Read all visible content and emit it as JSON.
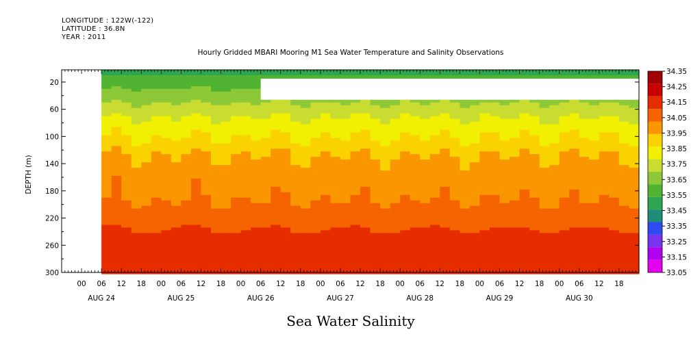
{
  "header": {
    "longitude": "LONGITUDE : 122W(-122)",
    "latitude": "LATITUDE : 36.8N",
    "year": "YEAR : 2011"
  },
  "chart_data": {
    "type": "heatmap",
    "title": "Hourly Gridded MBARI Mooring M1 Sea Water Temperature and Salinity Observations",
    "subtitle": "Sea Water Salinity",
    "ylabel": "DEPTH (m)",
    "xlabel": "",
    "y_axis": {
      "range": [
        300,
        2
      ],
      "ticks": [
        20,
        60,
        100,
        140,
        180,
        220,
        260,
        300
      ],
      "inverted": true
    },
    "x_axis": {
      "start": "2011-08-23 18:00",
      "end": "2011-08-31 00:00",
      "hour_tick_labels": [
        "00",
        "06",
        "12",
        "18",
        "00",
        "06",
        "12",
        "18",
        "00",
        "06",
        "12",
        "18",
        "00",
        "06",
        "12",
        "18",
        "00",
        "06",
        "12",
        "18",
        "00",
        "06",
        "12",
        "18",
        "00",
        "06",
        "12",
        "18"
      ],
      "day_labels": [
        "AUG 24",
        "AUG 25",
        "AUG 26",
        "AUG 27",
        "AUG 28",
        "AUG 29",
        "AUG 30"
      ]
    },
    "data_start": "2011-08-24 06:00",
    "missing_data": {
      "time_from": "2011-08-26 06:00",
      "time_to": "2011-08-31 00:00",
      "depth_from": 15,
      "depth_to": 46
    },
    "colorbar": {
      "levels": [
        33.05,
        33.15,
        33.25,
        33.35,
        33.45,
        33.55,
        33.65,
        33.75,
        33.85,
        33.95,
        34.05,
        34.15,
        34.25,
        34.35
      ],
      "colors": [
        "#e600f0",
        "#b000f0",
        "#7832f0",
        "#2d4bf0",
        "#1e8c78",
        "#2ea550",
        "#50b432",
        "#8cc837",
        "#c8dc32",
        "#f0f000",
        "#fad200",
        "#fa9600",
        "#f56400",
        "#e62d00",
        "#c80000",
        "#a00000"
      ]
    },
    "depth_profile": [
      {
        "depth": 2,
        "value": 33.5
      },
      {
        "depth": 10,
        "value": 33.55
      },
      {
        "depth": 25,
        "value": 33.63
      },
      {
        "depth": 45,
        "value": 33.72
      },
      {
        "depth": 65,
        "value": 33.82
      },
      {
        "depth": 85,
        "value": 33.9
      },
      {
        "depth": 105,
        "value": 33.96
      },
      {
        "depth": 125,
        "value": 34.04
      },
      {
        "depth": 150,
        "value": 34.1
      },
      {
        "depth": 185,
        "value": 34.13
      },
      {
        "depth": 210,
        "value": 34.18
      },
      {
        "depth": 232,
        "value": 34.23
      },
      {
        "depth": 250,
        "value": 34.3
      },
      {
        "depth": 265,
        "value": 34.32
      },
      {
        "depth": 285,
        "value": 34.26
      },
      {
        "depth": 300,
        "value": 34.25
      }
    ]
  }
}
